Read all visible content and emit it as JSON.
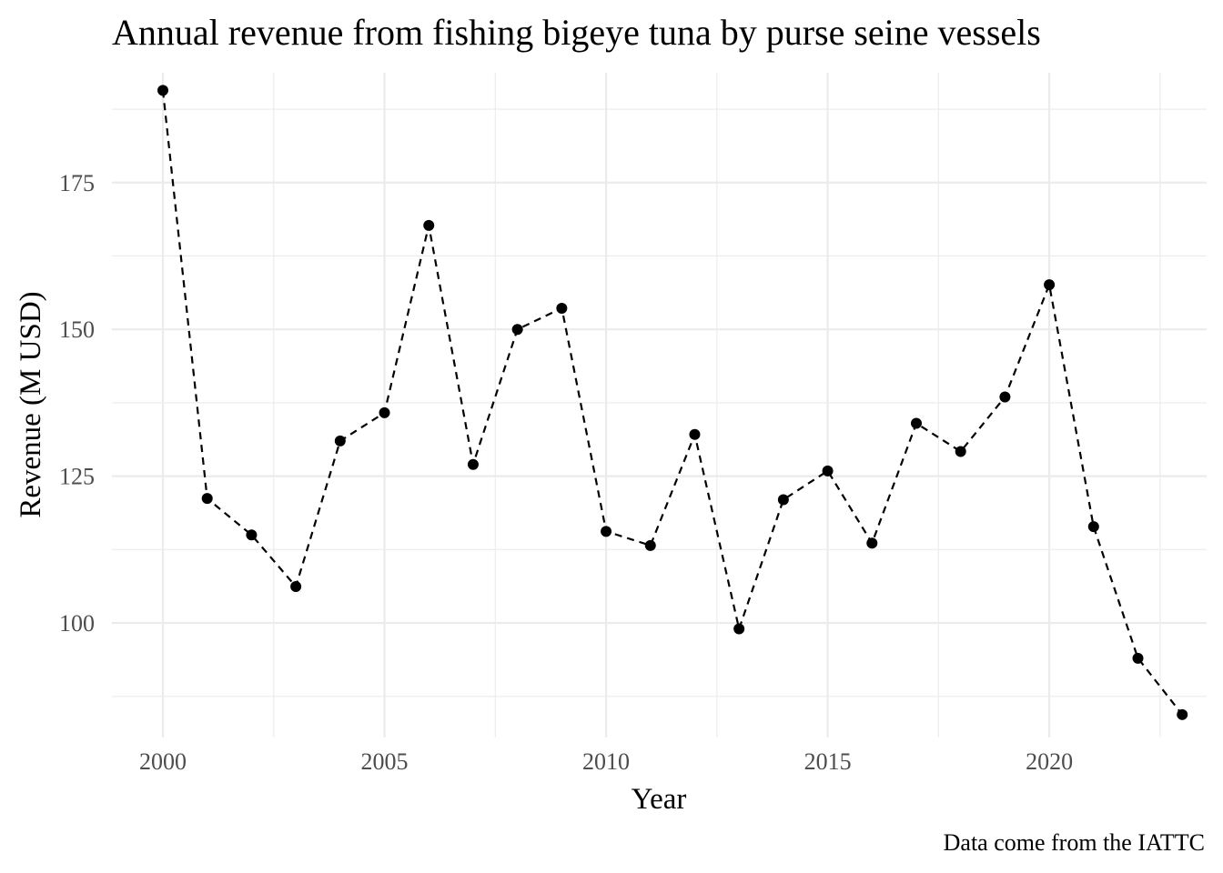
{
  "chart_data": {
    "type": "line",
    "title": "Annual revenue from fishing bigeye tuna by purse seine vessels",
    "xlabel": "Year",
    "ylabel": "Revenue (M USD)",
    "caption": "Data come from the IATTC",
    "line_style": "dashed",
    "markers": true,
    "grid": true,
    "xlim": [
      1998.85,
      2023.55
    ],
    "ylim": [
      80.5,
      193.7
    ],
    "x_ticks": [
      2000,
      2005,
      2010,
      2015,
      2020
    ],
    "x_tick_labels": [
      "2000",
      "2005",
      "2010",
      "2015",
      "2020"
    ],
    "y_ticks": [
      100,
      125,
      150,
      175
    ],
    "y_tick_labels": [
      "100",
      "125",
      "150",
      "175"
    ],
    "x_minor": [
      2002.5,
      2007.5,
      2012.5,
      2017.5,
      2022.5
    ],
    "y_minor": [
      87.5,
      112.5,
      137.5,
      162.5,
      187.5
    ],
    "series": [
      {
        "name": "Revenue",
        "x": [
          2000,
          2001,
          2002,
          2003,
          2004,
          2005,
          2006,
          2007,
          2008,
          2009,
          2010,
          2011,
          2012,
          2013,
          2014,
          2015,
          2016,
          2017,
          2018,
          2019,
          2020,
          2021,
          2022,
          2023
        ],
        "values": [
          190.7,
          121.2,
          115.0,
          106.2,
          131.0,
          135.8,
          167.7,
          127.0,
          150.0,
          153.6,
          115.6,
          113.2,
          132.1,
          99.0,
          121.0,
          125.9,
          113.6,
          134.0,
          129.2,
          138.5,
          157.6,
          116.4,
          94.0,
          84.4
        ]
      }
    ]
  }
}
